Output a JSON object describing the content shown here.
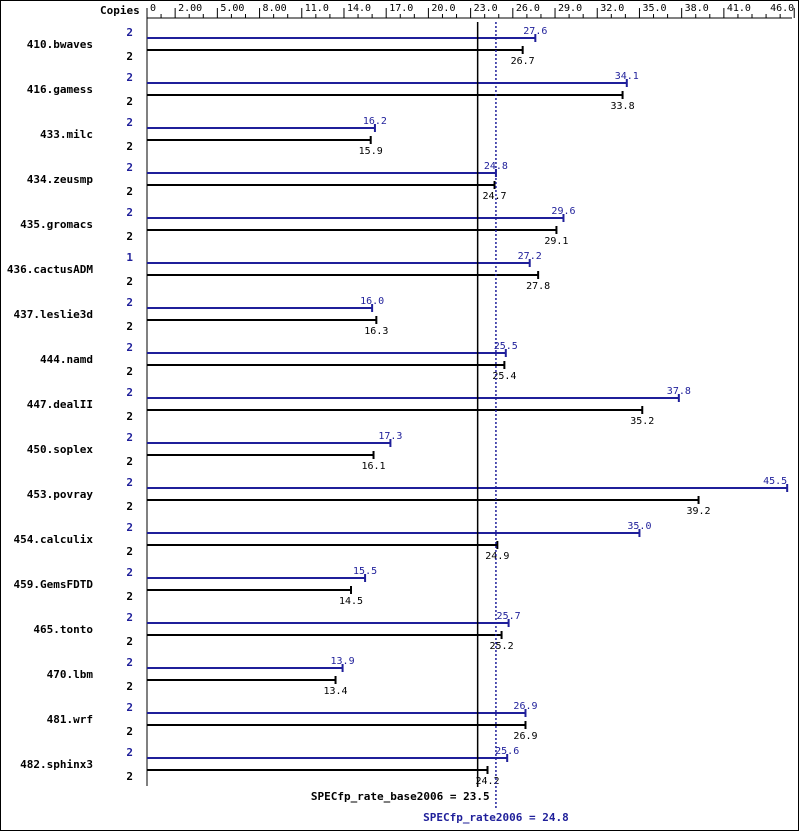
{
  "chart_data": {
    "type": "bar",
    "header_label": "Copies",
    "x_ticks": [
      "0",
      "2.00",
      "5.00",
      "8.00",
      "11.0",
      "14.0",
      "17.0",
      "20.0",
      "23.0",
      "26.0",
      "29.0",
      "32.0",
      "35.0",
      "38.0",
      "41.0",
      "46.0"
    ],
    "x_tick_values": [
      0,
      2,
      5,
      8,
      11,
      14,
      17,
      20,
      23,
      26,
      29,
      32,
      35,
      38,
      41,
      46
    ],
    "xlim": [
      0,
      46
    ],
    "categories": [
      "410.bwaves",
      "416.gamess",
      "433.milc",
      "434.zeusmp",
      "435.gromacs",
      "436.cactusADM",
      "437.leslie3d",
      "444.namd",
      "447.dealII",
      "450.soplex",
      "453.povray",
      "454.calculix",
      "459.GemsFDTD",
      "465.tonto",
      "470.lbm",
      "481.wrf",
      "482.sphinx3"
    ],
    "series": [
      {
        "key": "peak",
        "color": "#1f1f9a",
        "copies": [
          "2",
          "2",
          "2",
          "2",
          "2",
          "1",
          "2",
          "2",
          "2",
          "2",
          "2",
          "2",
          "2",
          "2",
          "2",
          "2",
          "2"
        ],
        "values": [
          27.6,
          34.1,
          16.2,
          24.8,
          29.6,
          27.2,
          16.0,
          25.5,
          37.8,
          17.3,
          45.5,
          35.0,
          15.5,
          25.7,
          13.9,
          26.9,
          25.6
        ],
        "labels": [
          "27.6",
          "34.1",
          "16.2",
          "24.8",
          "29.6",
          "27.2",
          "16.0",
          "25.5",
          "37.8",
          "17.3",
          "45.5",
          "35.0",
          "15.5",
          "25.7",
          "13.9",
          "26.9",
          "25.6"
        ]
      },
      {
        "key": "base",
        "color": "#000000",
        "copies": [
          "2",
          "2",
          "2",
          "2",
          "2",
          "2",
          "2",
          "2",
          "2",
          "2",
          "2",
          "2",
          "2",
          "2",
          "2",
          "2",
          "2"
        ],
        "values": [
          26.7,
          33.8,
          15.9,
          24.7,
          29.1,
          27.8,
          16.3,
          25.4,
          35.2,
          16.1,
          39.2,
          24.9,
          14.5,
          25.2,
          13.4,
          26.9,
          24.2
        ],
        "labels": [
          "26.7",
          "33.8",
          "15.9",
          "24.7",
          "29.1",
          "27.8",
          "16.3",
          "25.4",
          "35.2",
          "16.1",
          "39.2",
          "24.9",
          "14.5",
          "25.2",
          "13.4",
          "26.9",
          "24.2"
        ]
      }
    ],
    "reference_lines": [
      {
        "key": "base",
        "value": 23.5,
        "label": "SPECfp_rate_base2006 = 23.5",
        "color": "#000000",
        "style": "solid"
      },
      {
        "key": "peak",
        "value": 24.8,
        "label": "SPECfp_rate2006 = 24.8",
        "color": "#1f1f9a",
        "style": "dotted"
      }
    ]
  }
}
